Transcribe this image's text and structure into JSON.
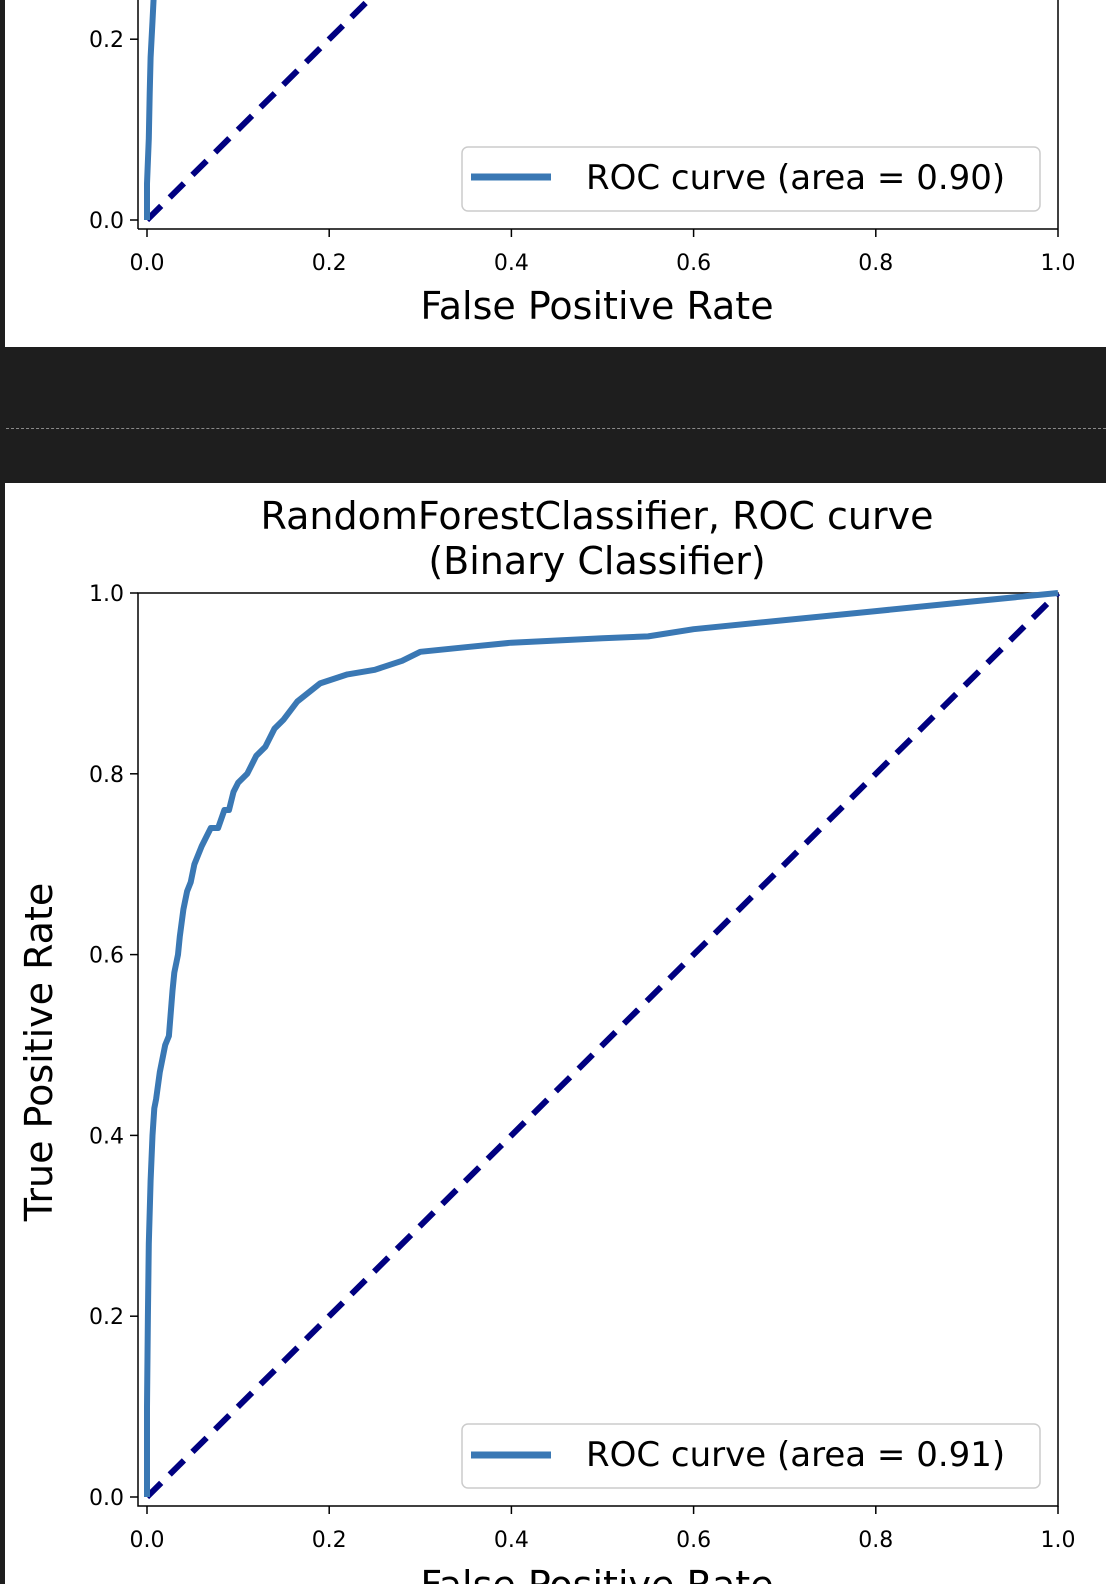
{
  "charts": [
    {
      "id": "top",
      "xlabel": "False Positive Rate",
      "legend_label": "ROC curve (area = 0.90)",
      "y_ticks": [
        "0.0",
        "0.2"
      ],
      "x_ticks": [
        "0.0",
        "0.2",
        "0.4",
        "0.6",
        "0.8",
        "1.0"
      ]
    },
    {
      "id": "bottom",
      "title_line1": "RandomForestClassifier, ROC curve",
      "title_line2": "(Binary Classifier)",
      "xlabel": "False Positive Rate",
      "ylabel": "True Positive Rate",
      "legend_label": "ROC curve (area = 0.91)",
      "y_ticks": [
        "0.0",
        "0.2",
        "0.4",
        "0.6",
        "0.8",
        "1.0"
      ],
      "x_ticks": [
        "0.0",
        "0.2",
        "0.4",
        "0.6",
        "0.8",
        "1.0"
      ]
    }
  ],
  "chart_data": [
    {
      "type": "line",
      "xlabel": "False Positive Rate",
      "xlim": [
        0,
        1
      ],
      "ylim_visible": [
        0,
        0.2
      ],
      "series": [
        {
          "name": "ROC curve (area = 0.90)",
          "color": "#3a78b4",
          "style": "solid",
          "x": [
            0.0,
            0.0,
            0.002,
            0.003,
            0.004,
            0.006,
            0.008
          ],
          "y": [
            0.0,
            0.04,
            0.09,
            0.14,
            0.18,
            0.22,
            0.26
          ]
        },
        {
          "name": "",
          "color": "#000080",
          "style": "dashed",
          "x": [
            0,
            1
          ],
          "y": [
            0,
            1
          ]
        }
      ]
    },
    {
      "type": "line",
      "title": "RandomForestClassifier, ROC curve (Binary Classifier)",
      "xlabel": "False Positive Rate",
      "ylabel": "True Positive Rate",
      "xlim": [
        0,
        1
      ],
      "ylim": [
        0,
        1
      ],
      "series": [
        {
          "name": "ROC curve (area = 0.91)",
          "color": "#3a78b4",
          "style": "solid",
          "x": [
            0.0,
            0.0,
            0.001,
            0.002,
            0.004,
            0.006,
            0.008,
            0.01,
            0.014,
            0.016,
            0.02,
            0.024,
            0.028,
            0.03,
            0.034,
            0.036,
            0.04,
            0.044,
            0.048,
            0.052,
            0.06,
            0.065,
            0.07,
            0.078,
            0.085,
            0.09,
            0.095,
            0.1,
            0.11,
            0.12,
            0.13,
            0.14,
            0.15,
            0.165,
            0.19,
            0.22,
            0.25,
            0.28,
            0.3,
            0.35,
            0.4,
            0.5,
            0.55,
            0.6,
            0.7,
            0.8,
            0.9,
            1.0
          ],
          "y": [
            0.0,
            0.1,
            0.2,
            0.28,
            0.35,
            0.4,
            0.43,
            0.44,
            0.47,
            0.48,
            0.5,
            0.51,
            0.56,
            0.58,
            0.6,
            0.62,
            0.65,
            0.67,
            0.68,
            0.7,
            0.72,
            0.73,
            0.74,
            0.74,
            0.76,
            0.76,
            0.78,
            0.79,
            0.8,
            0.82,
            0.83,
            0.85,
            0.86,
            0.88,
            0.9,
            0.91,
            0.915,
            0.925,
            0.935,
            0.94,
            0.945,
            0.95,
            0.952,
            0.96,
            0.97,
            0.98,
            0.99,
            1.0
          ]
        },
        {
          "name": "",
          "color": "#000080",
          "style": "dashed",
          "x": [
            0,
            1
          ],
          "y": [
            0,
            1
          ]
        }
      ]
    }
  ]
}
